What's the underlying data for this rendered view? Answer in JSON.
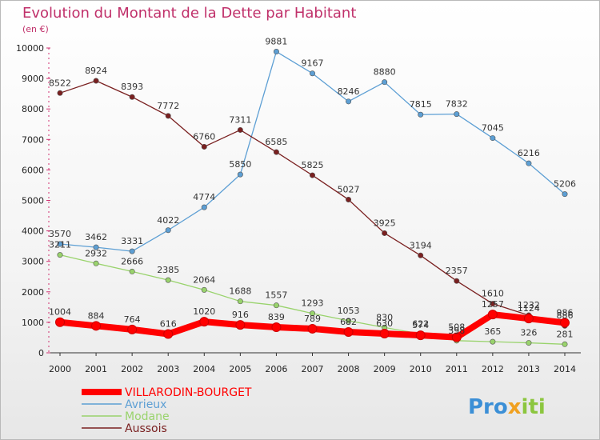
{
  "chart_data": {
    "type": "line",
    "title": "Evolution du Montant de la Dette par Habitant",
    "subtitle": "(en €)",
    "xlabel": "",
    "ylabel": "",
    "ylim": [
      0,
      10000
    ],
    "yticks": [
      0,
      1000,
      2000,
      3000,
      4000,
      5000,
      6000,
      7000,
      8000,
      9000,
      10000
    ],
    "categories": [
      "2000",
      "2001",
      "2002",
      "2003",
      "2004",
      "2005",
      "2006",
      "2007",
      "2008",
      "2009",
      "2010",
      "2011",
      "2012",
      "2013",
      "2014"
    ],
    "grid": false,
    "legend_position": "bottom-left",
    "series": [
      {
        "name": "VILLARODIN-BOURGET",
        "color": "#ff0000",
        "values": [
          1004,
          884,
          764,
          616,
          1020,
          916,
          839,
          789,
          682,
          630,
          574,
          508,
          1257,
          1124,
          986
        ]
      },
      {
        "name": "Avrieux",
        "color": "#5d9fd4",
        "values": [
          3570,
          3462,
          3331,
          4022,
          4774,
          5850,
          9881,
          9167,
          8246,
          8880,
          7815,
          7832,
          7045,
          6216,
          5206
        ]
      },
      {
        "name": "Modane",
        "color": "#99d36c",
        "values": [
          3211,
          2932,
          2666,
          2385,
          2064,
          1688,
          1557,
          1293,
          1053,
          830,
          622,
          398,
          365,
          326,
          281
        ]
      },
      {
        "name": "Aussois",
        "color": "#7a2020",
        "values": [
          8522,
          8924,
          8393,
          7772,
          6760,
          7311,
          6585,
          5825,
          5027,
          3925,
          3194,
          2357,
          1610,
          1232,
          886
        ]
      }
    ]
  },
  "logo": {
    "text_pro": "Pro",
    "text_x": "x",
    "text_iti": "iti"
  }
}
